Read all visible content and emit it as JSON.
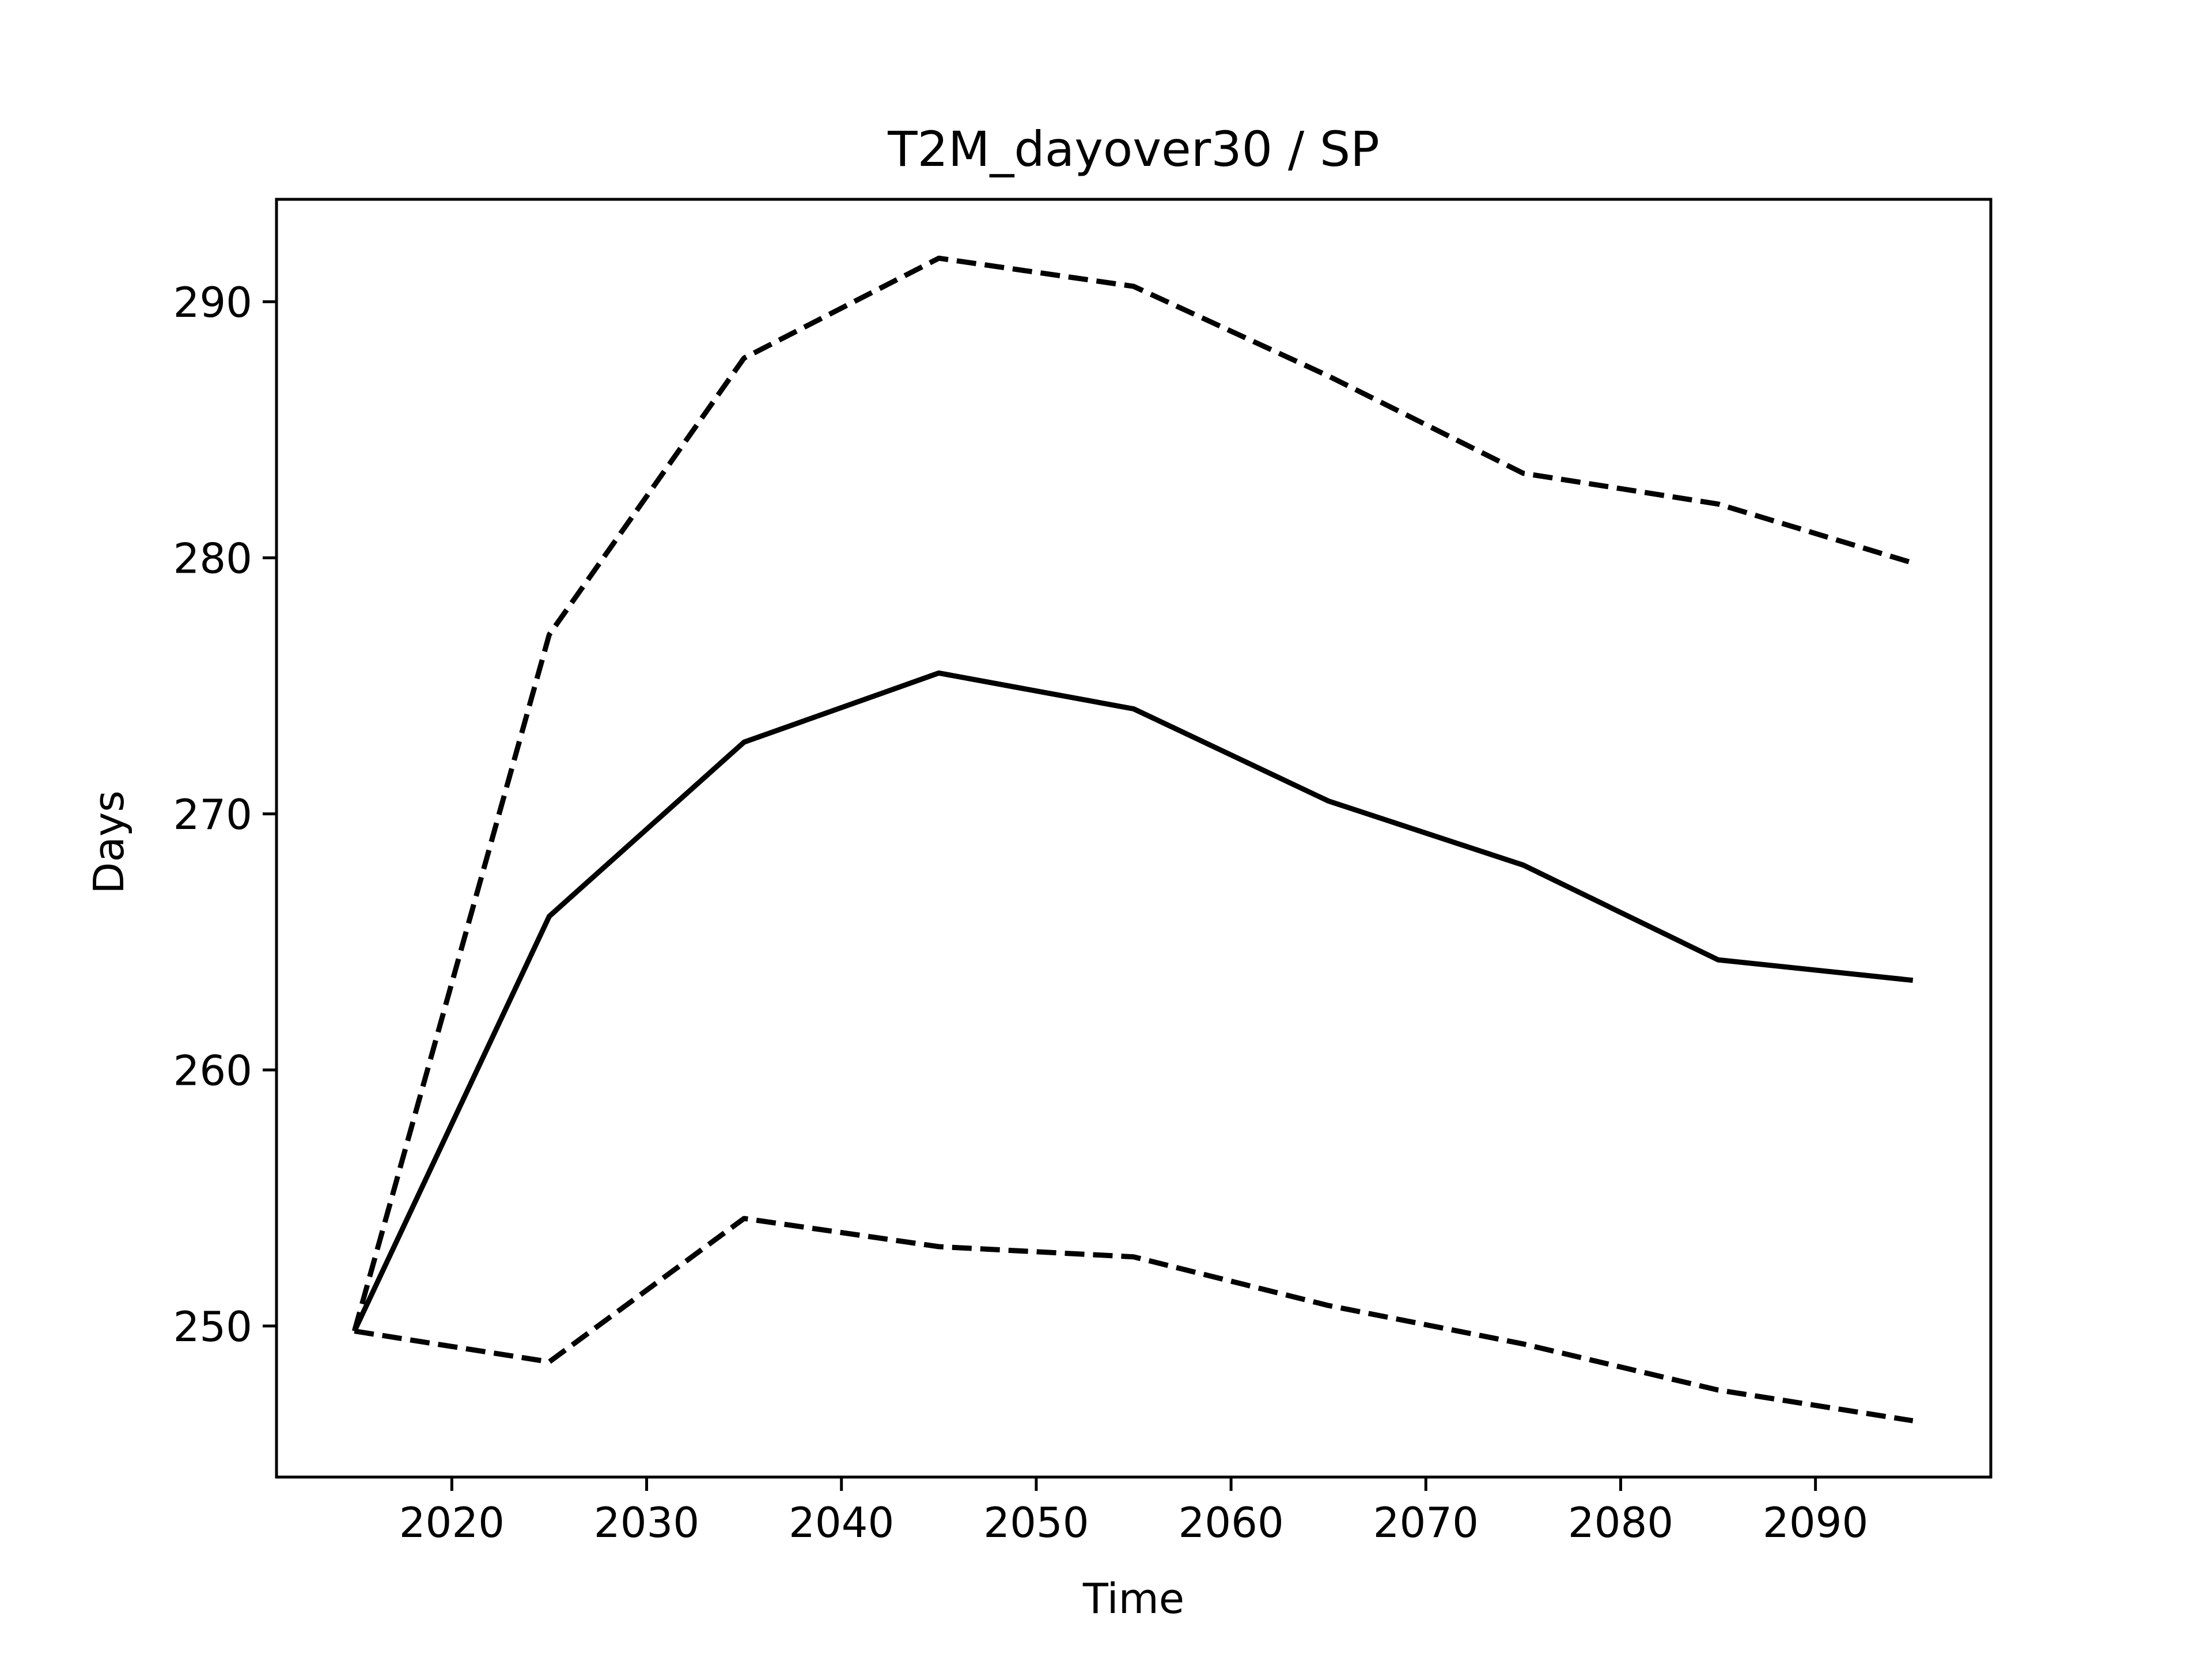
{
  "chart_data": {
    "type": "line",
    "title": "T2M_dayover30 / SP",
    "xlabel": "Time",
    "ylabel": "Days",
    "xlim": [
      2011,
      2099
    ],
    "ylim": [
      244.1,
      294.0
    ],
    "xticks": [
      2020,
      2030,
      2040,
      2050,
      2060,
      2070,
      2080,
      2090
    ],
    "yticks": [
      250,
      260,
      270,
      280,
      290
    ],
    "grid": false,
    "legend": null,
    "x": [
      2015,
      2025,
      2035,
      2045,
      2055,
      2065,
      2075,
      2085,
      2095
    ],
    "series": [
      {
        "style": "solid",
        "color": "#000000",
        "values": [
          249.8,
          266.0,
          272.8,
          275.5,
          274.1,
          270.5,
          268.0,
          264.3,
          263.5
        ]
      },
      {
        "style": "dashed",
        "color": "#000000",
        "values": [
          249.8,
          277.0,
          287.8,
          291.7,
          290.6,
          287.1,
          283.3,
          282.1,
          279.8
        ]
      },
      {
        "style": "dashed",
        "color": "#000000",
        "values": [
          249.8,
          248.6,
          254.2,
          253.1,
          252.7,
          250.8,
          249.3,
          247.5,
          246.3
        ]
      }
    ]
  }
}
